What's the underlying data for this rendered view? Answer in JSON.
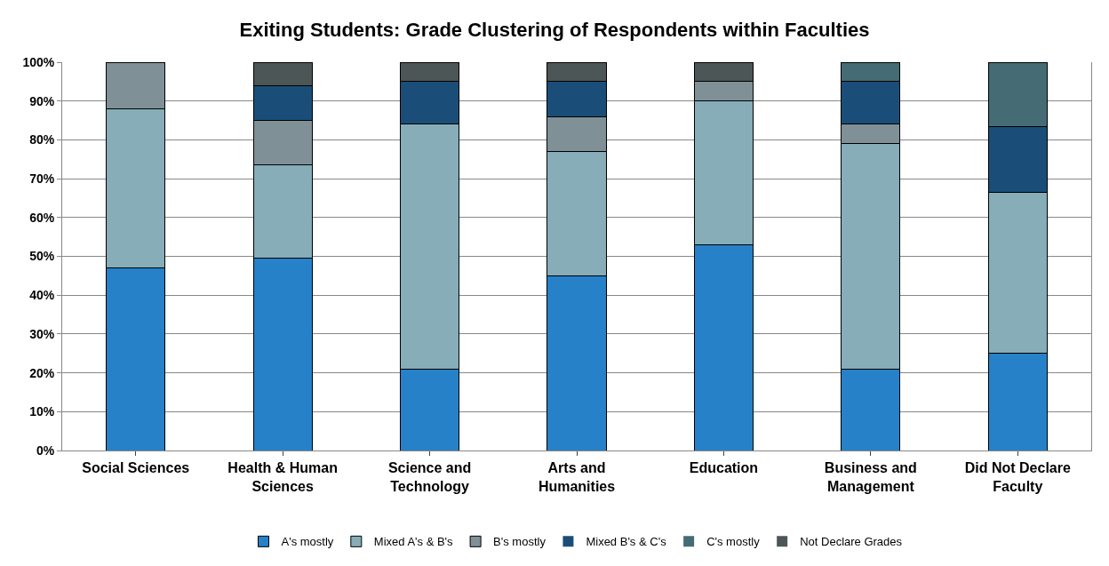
{
  "chart_data": {
    "type": "bar",
    "stacked": true,
    "title": "Exiting Students: Grade Clustering of Respondents within Faculties",
    "categories": [
      "Social Sciences",
      "Health & Human\nSciences",
      "Science and\nTechnology",
      "Arts and\nHumanities",
      "Education",
      "Business and\nManagement",
      "Did Not Declare\nFaculty"
    ],
    "series": [
      {
        "name": "A's mostly",
        "color": "#2681c8",
        "values": [
          47,
          49.5,
          21,
          45,
          53,
          21,
          25
        ]
      },
      {
        "name": "Mixed A's & B's",
        "color": "#86adb8",
        "values": [
          41,
          24,
          63,
          32,
          37,
          58,
          41.5
        ]
      },
      {
        "name": "B's mostly",
        "color": "#7f9196",
        "values": [
          12,
          11.5,
          0,
          9,
          5,
          5,
          0
        ]
      },
      {
        "name": "Mixed B's & C's",
        "color": "#1a4e78",
        "values": [
          0,
          9,
          11,
          9,
          0,
          11,
          17
        ]
      },
      {
        "name": "C's mostly",
        "color": "#456b75",
        "values": [
          0,
          0,
          0,
          0,
          0,
          5,
          16.5
        ]
      },
      {
        "name": "Not Declare Grades",
        "color": "#4d5656",
        "values": [
          0,
          6,
          5,
          5,
          5,
          0,
          0
        ]
      }
    ],
    "ylim": [
      0,
      100
    ],
    "yticks": [
      {
        "value": 0,
        "label": "0%"
      },
      {
        "value": 10,
        "label": "10%"
      },
      {
        "value": 20,
        "label": "20%"
      },
      {
        "value": 30,
        "label": "30%"
      },
      {
        "value": 40,
        "label": "40%"
      },
      {
        "value": 50,
        "label": "50%"
      },
      {
        "value": 60,
        "label": "60%"
      },
      {
        "value": 70,
        "label": "70%"
      },
      {
        "value": 80,
        "label": "80%"
      },
      {
        "value": 90,
        "label": "90%"
      },
      {
        "value": 100,
        "label": "100%"
      }
    ],
    "grid": "y",
    "legend": "bottom"
  }
}
